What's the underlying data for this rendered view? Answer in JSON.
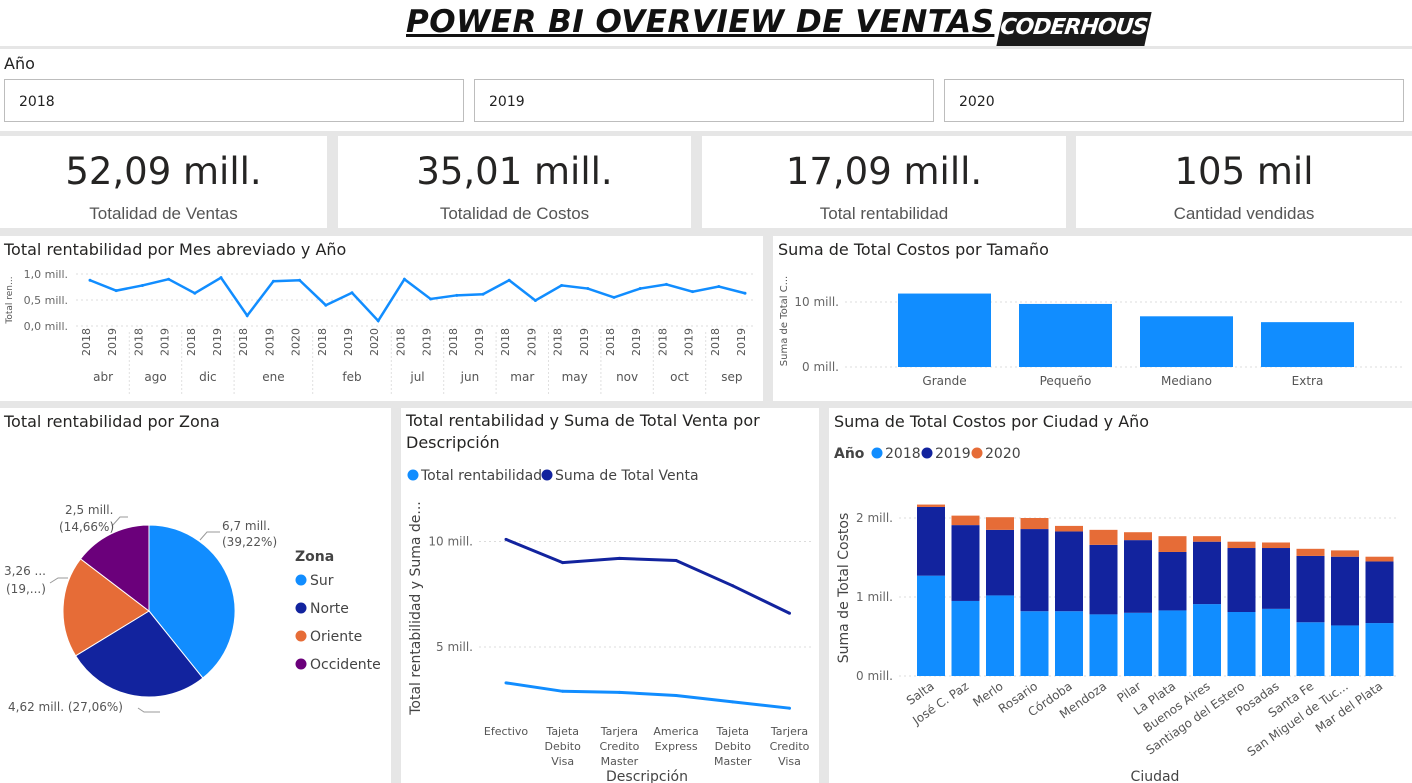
{
  "header": {
    "title": "POWER BI OVERVIEW DE VENTAS",
    "logo_text": "CODERHOUSE"
  },
  "slicer": {
    "title": "Año",
    "options": [
      "2018",
      "2019",
      "2020"
    ]
  },
  "kpis": [
    {
      "value": "52,09 mill.",
      "label": "Totalidad de Ventas"
    },
    {
      "value": "35,01 mill.",
      "label": "Totalidad de Costos"
    },
    {
      "value": "17,09 mill.",
      "label": "Total rentabilidad"
    },
    {
      "value": "105 mil",
      "label": "Cantidad vendidas"
    }
  ],
  "colors": {
    "blue": "#118dff",
    "navy": "#12239e",
    "orange": "#e66c37",
    "purple": "#6b007b"
  },
  "chart_data": [
    {
      "type": "line",
      "title": "Total rentabilidad por Mes abreviado y Año",
      "ylabel": "Total ren...",
      "yticks": [
        "1,0 mill.",
        "0,5 mill.",
        "0,0 mill."
      ],
      "ylim": [
        0,
        1.0
      ],
      "x_years": [
        "2018",
        "2019",
        "2018",
        "2019",
        "2018",
        "2019",
        "2018",
        "2019",
        "2020",
        "2018",
        "2019",
        "2020",
        "2018",
        "2019",
        "2018",
        "2019",
        "2018",
        "2019",
        "2018",
        "2019",
        "2018",
        "2019",
        "2018",
        "2019",
        "2018",
        "2019"
      ],
      "x_months": [
        {
          "label": "abr",
          "span": 2
        },
        {
          "label": "ago",
          "span": 2
        },
        {
          "label": "dic",
          "span": 2
        },
        {
          "label": "ene",
          "span": 3
        },
        {
          "label": "feb",
          "span": 3
        },
        {
          "label": "jul",
          "span": 2
        },
        {
          "label": "jun",
          "span": 2
        },
        {
          "label": "mar",
          "span": 2
        },
        {
          "label": "may",
          "span": 2
        },
        {
          "label": "nov",
          "span": 2
        },
        {
          "label": "oct",
          "span": 2
        },
        {
          "label": "sep",
          "span": 2
        }
      ],
      "values": [
        0.88,
        0.68,
        0.78,
        0.9,
        0.63,
        0.93,
        0.2,
        0.86,
        0.88,
        0.4,
        0.64,
        0.1,
        0.9,
        0.52,
        0.59,
        0.61,
        0.88,
        0.49,
        0.78,
        0.72,
        0.55,
        0.72,
        0.8,
        0.66,
        0.76,
        0.63
      ],
      "color": "#118dff"
    },
    {
      "type": "bar",
      "title": "Suma de Total Costos por Tamaño",
      "ylabel": "Suma de Total C...",
      "yticks": [
        "10 mill.",
        "0 mill."
      ],
      "ylim": [
        0,
        14
      ],
      "categories": [
        "Grande",
        "Pequeño",
        "Mediano",
        "Extra"
      ],
      "values": [
        11.3,
        9.7,
        7.8,
        6.9
      ],
      "color": "#118dff"
    },
    {
      "type": "pie",
      "title": "Total rentabilidad por Zona",
      "legend_title": "Zona",
      "slices": [
        {
          "name": "Sur",
          "value": 6.7,
          "label": "6,7 mill.",
          "pct": "(39,22%)",
          "color": "#118dff"
        },
        {
          "name": "Norte",
          "value": 4.62,
          "label": "4,62 mill. (27,06%)",
          "pct": "",
          "color": "#12239e"
        },
        {
          "name": "Oriente",
          "value": 3.26,
          "label": "3,26 ...",
          "pct": "(19,...)",
          "color": "#e66c37"
        },
        {
          "name": "Occidente",
          "value": 2.5,
          "label": "2,5 mill.",
          "pct": "(14,66%)",
          "color": "#6b007b"
        }
      ]
    },
    {
      "type": "line",
      "title": "Total rentabilidad y Suma de Total Venta por Descripción",
      "xlabel": "Descripción",
      "ylabel": "Total rentabilidad y Suma de...",
      "yticks": [
        "10 mill.",
        "5 mill."
      ],
      "ylim": [
        0,
        12
      ],
      "categories": [
        [
          "Efectivo"
        ],
        [
          "Tajeta",
          "Debito",
          "Visa"
        ],
        [
          "Tarjera",
          "Credito",
          "Master"
        ],
        [
          "America",
          "Express"
        ],
        [
          "Tajeta",
          "Debito",
          "Master"
        ],
        [
          "Tarjera",
          "Credito",
          "Visa"
        ]
      ],
      "series": [
        {
          "name": "Total rentabilidad",
          "values": [
            3.3,
            2.9,
            2.85,
            2.7,
            2.4,
            2.1
          ],
          "color": "#118dff"
        },
        {
          "name": "Suma de Total Venta",
          "values": [
            10.1,
            9.0,
            9.2,
            9.1,
            7.9,
            6.6
          ],
          "color": "#12239e"
        }
      ]
    },
    {
      "type": "bar",
      "title": "Suma de Total Costos por Ciudad y Año",
      "xlabel": "Ciudad",
      "ylabel": "Suma de Total Costos",
      "legend_title": "Año",
      "yticks": [
        "2 mill.",
        "1 mill.",
        "0 mill."
      ],
      "ylim": [
        0,
        2.3
      ],
      "categories": [
        "Salta",
        "José C. Paz",
        "Merlo",
        "Rosario",
        "Córdoba",
        "Mendoza",
        "Pilar",
        "La Plata",
        "Buenos Aires",
        "Santiago del Estero",
        "Posadas",
        "Santa Fe",
        "San Miguel de Tuc...",
        "Mar del Plata"
      ],
      "series": [
        {
          "name": "2018",
          "values": [
            1.27,
            0.95,
            1.02,
            0.82,
            0.82,
            0.78,
            0.8,
            0.83,
            0.91,
            0.81,
            0.85,
            0.68,
            0.64,
            0.67
          ],
          "color": "#118dff"
        },
        {
          "name": "2019",
          "values": [
            0.87,
            0.96,
            0.83,
            1.04,
            1.01,
            0.88,
            0.92,
            0.74,
            0.79,
            0.81,
            0.77,
            0.84,
            0.87,
            0.78
          ],
          "color": "#12239e"
        },
        {
          "name": "2020",
          "values": [
            0.03,
            0.12,
            0.16,
            0.14,
            0.07,
            0.19,
            0.1,
            0.2,
            0.07,
            0.08,
            0.07,
            0.09,
            0.08,
            0.06
          ],
          "color": "#e66c37"
        }
      ]
    }
  ]
}
